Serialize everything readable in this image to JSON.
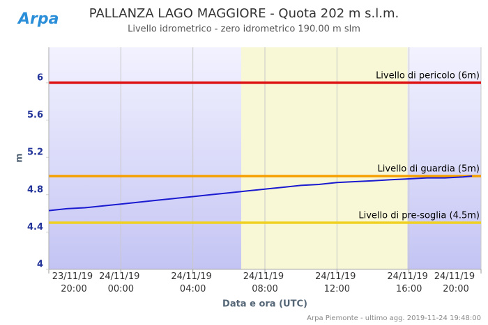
{
  "logo": "Arpa",
  "chart_data": {
    "type": "line",
    "title": "PALLANZA LAGO MAGGIORE - Quota 202 m s.l.m.",
    "subtitle": "Livello idrometrico - zero idrometrico 190.00 m slm",
    "y_label": "m",
    "x_label": "Data e ora (UTC)",
    "credits": "Arpa Piemonte - ultimo agg. 2019-11-24 19:48:00",
    "x": [
      "2019-11-23 20:00",
      "2019-11-23 21:00",
      "2019-11-23 22:00",
      "2019-11-23 23:00",
      "2019-11-24 00:00",
      "2019-11-24 01:00",
      "2019-11-24 02:00",
      "2019-11-24 03:00",
      "2019-11-24 04:00",
      "2019-11-24 05:00",
      "2019-11-24 06:00",
      "2019-11-24 07:00",
      "2019-11-24 08:00",
      "2019-11-24 09:00",
      "2019-11-24 10:00",
      "2019-11-24 11:00",
      "2019-11-24 12:00",
      "2019-11-24 13:00",
      "2019-11-24 14:00",
      "2019-11-24 15:00",
      "2019-11-24 16:00",
      "2019-11-24 17:00",
      "2019-11-24 18:00",
      "2019-11-24 19:00",
      "2019-11-24 19:30"
    ],
    "series": [
      {
        "name": "Livello",
        "color": "#1a1ad0",
        "values": [
          4.63,
          4.65,
          4.66,
          4.68,
          4.7,
          4.72,
          4.74,
          4.76,
          4.78,
          4.8,
          4.82,
          4.84,
          4.86,
          4.88,
          4.9,
          4.91,
          4.93,
          4.94,
          4.95,
          4.96,
          4.97,
          4.98,
          4.98,
          4.99,
          5.0
        ]
      }
    ],
    "thresholds": [
      {
        "value": 6,
        "label": "Livello di pericolo (6m)",
        "color": "#dd1111"
      },
      {
        "value": 5,
        "label": "Livello di guardia (5m)",
        "color": "#f5a000"
      },
      {
        "value": 4.5,
        "label": "Livello di pre-soglia (4.5m)",
        "color": "#f0d020"
      }
    ],
    "daylight": {
      "from": "2019-11-24 06:41",
      "to": "2019-11-24 15:55",
      "color": "#f8f8d6"
    },
    "xlim": [
      "2019-11-23 20:00",
      "2019-11-24 20:00"
    ],
    "xticks": [
      {
        "value": "2019-11-23 20:00",
        "label": "23/11/19 20:00"
      },
      {
        "value": "2019-11-24 00:00",
        "label": "24/11/19 00:00"
      },
      {
        "value": "2019-11-24 04:00",
        "label": "24/11/19 04:00"
      },
      {
        "value": "2019-11-24 08:00",
        "label": "24/11/19 08:00"
      },
      {
        "value": "2019-11-24 12:00",
        "label": "24/11/19 12:00"
      },
      {
        "value": "2019-11-24 16:00",
        "label": "24/11/19 16:00"
      },
      {
        "value": "2019-11-24 20:00",
        "label": "24/11/19 20:00"
      }
    ],
    "ylim": [
      4,
      6.38
    ],
    "yticks": [
      4,
      4.4,
      4.8,
      5.2,
      5.6,
      6
    ],
    "grid": "x"
  }
}
